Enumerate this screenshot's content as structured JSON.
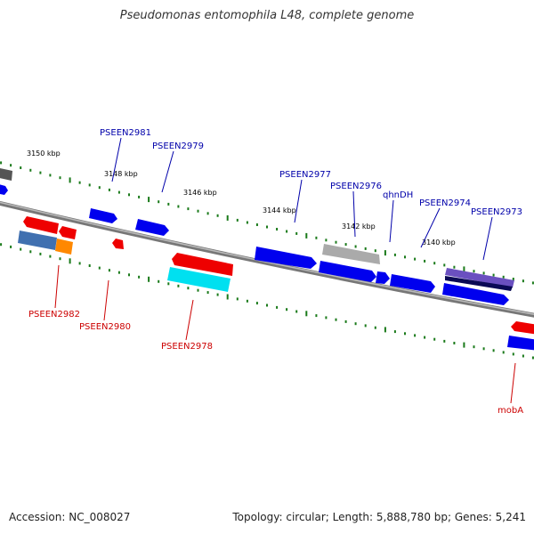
{
  "title": "Pseudomonas entomophila L48, complete genome",
  "accession": "Accession: NC_008027",
  "topology": "Topology: circular; Length: 5,888,780 bp; Genes: 5,241",
  "colors": {
    "forward_gene": "#0000ee",
    "reverse_gene": "#ee0000",
    "forward_label": "#0000aa",
    "reverse_label": "#cc0000",
    "tick": "#1a7a1a",
    "backbone": "#888888"
  },
  "kbp_markers": [
    "3150 kbp",
    "3148 kbp",
    "3146 kbp",
    "3144 kbp",
    "3142 kbp",
    "3140 kbp"
  ],
  "forward_labels": [
    "PSEEN2981",
    "PSEEN2979",
    "PSEEN2977",
    "PSEEN2976",
    "qhnDH",
    "PSEEN2974",
    "PSEEN2973"
  ],
  "reverse_labels": [
    "PSEEN2982",
    "PSEEN2980",
    "PSEEN2978",
    "mobA"
  ]
}
